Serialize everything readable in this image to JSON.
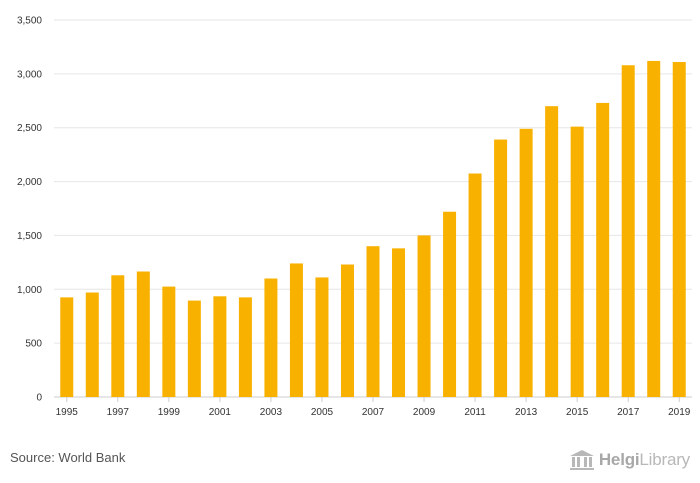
{
  "chart_data": {
    "type": "bar",
    "title": "",
    "xlabel": "",
    "ylabel": "",
    "ylim": [
      0,
      3500
    ],
    "y_ticks": [
      0,
      500,
      1000,
      1500,
      2000,
      2500,
      3000,
      3500
    ],
    "y_tick_labels": [
      "0",
      "500",
      "1,000",
      "1,500",
      "2,000",
      "2,500",
      "3,000",
      "3,500"
    ],
    "categories": [
      "1995",
      "1996",
      "1997",
      "1998",
      "1999",
      "2000",
      "2001",
      "2002",
      "2003",
      "2004",
      "2005",
      "2006",
      "2007",
      "2008",
      "2009",
      "2010",
      "2011",
      "2012",
      "2013",
      "2014",
      "2015",
      "2016",
      "2017",
      "2018",
      "2019"
    ],
    "x_tick_labels": [
      "1995",
      "",
      "1997",
      "",
      "1999",
      "",
      "2001",
      "",
      "2003",
      "",
      "2005",
      "",
      "2007",
      "",
      "2009",
      "",
      "2011",
      "",
      "2013",
      "",
      "2015",
      "",
      "2017",
      "",
      "2019"
    ],
    "values": [
      925,
      970,
      1130,
      1165,
      1025,
      895,
      935,
      925,
      1100,
      1240,
      1110,
      1230,
      1400,
      1380,
      1500,
      1720,
      2075,
      2390,
      2490,
      2700,
      2510,
      2730,
      3080,
      3120,
      3110
    ],
    "bar_color": "#f9b100",
    "grid": true
  },
  "footer": {
    "source": "Source: World Bank",
    "logo_main": "Helgi",
    "logo_sub": "Library"
  }
}
